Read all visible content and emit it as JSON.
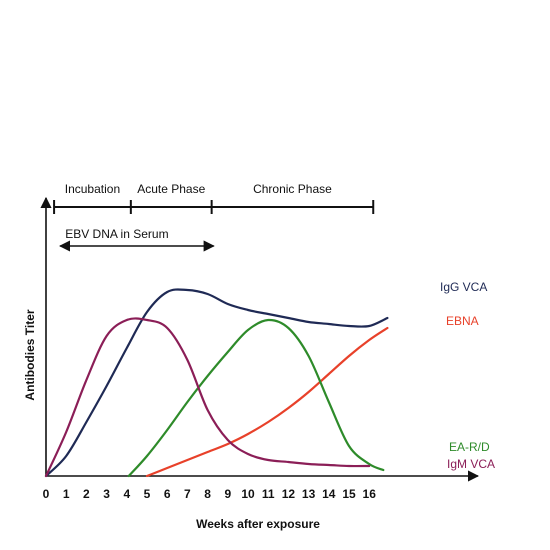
{
  "chart_data": {
    "type": "line",
    "title": "",
    "xlabel": "Weeks after exposure",
    "ylabel": "Antibodies Titer",
    "xlim": [
      0,
      17
    ],
    "ylim": [
      0,
      100
    ],
    "x_ticks": [
      "0",
      "1",
      "2",
      "3",
      "4",
      "5",
      "6",
      "7",
      "8",
      "9",
      "10",
      "11",
      "12",
      "13",
      "14",
      "15",
      "16"
    ],
    "grid": false,
    "phases": [
      {
        "label": "Incubation",
        "start": 0.4,
        "end": 4.2
      },
      {
        "label": "Acute Phase",
        "start": 4.2,
        "end": 8.2
      },
      {
        "label": "Chronic Phase",
        "start": 8.2,
        "end": 16.2
      }
    ],
    "annotation": {
      "label": "EBV DNA in Serum",
      "start": 0.7,
      "end": 8.3
    },
    "series": [
      {
        "name": "IgG VCA",
        "color": "#1f2a55",
        "x": [
          0,
          1,
          2,
          3,
          4,
          5,
          6,
          7,
          8,
          9,
          10,
          11,
          12,
          13,
          14,
          15,
          16,
          16.9
        ],
        "y": [
          0,
          10,
          27,
          45,
          64,
          82,
          92,
          93,
          91,
          86,
          83,
          81,
          79,
          77,
          76,
          75,
          75,
          79
        ]
      },
      {
        "name": "EBNA",
        "color": "#e8412a",
        "x": [
          5,
          6,
          7,
          8,
          9,
          10,
          11,
          12,
          13,
          14,
          15,
          16,
          16.9
        ],
        "y": [
          0,
          4,
          8,
          12,
          16,
          21,
          27,
          34,
          42,
          51,
          60,
          68,
          74
        ]
      },
      {
        "name": "EA-R/D",
        "color": "#2e8b2a",
        "x": [
          4.1,
          5,
          6,
          7,
          8,
          9,
          10,
          11,
          12,
          13,
          14,
          15,
          16,
          16.7
        ],
        "y": [
          0,
          10,
          23,
          37,
          50,
          62,
          73,
          78,
          74,
          60,
          37,
          15,
          6,
          3
        ]
      },
      {
        "name": "IgM VCA",
        "color": "#8b1e57",
        "x": [
          0,
          1,
          2,
          3,
          4,
          5,
          6,
          7,
          8,
          9,
          10,
          11,
          12,
          13,
          14,
          15,
          16
        ],
        "y": [
          0,
          22,
          48,
          70,
          78,
          78,
          74,
          58,
          33,
          18,
          11,
          8,
          7,
          6,
          5.5,
          5,
          5
        ]
      }
    ]
  }
}
